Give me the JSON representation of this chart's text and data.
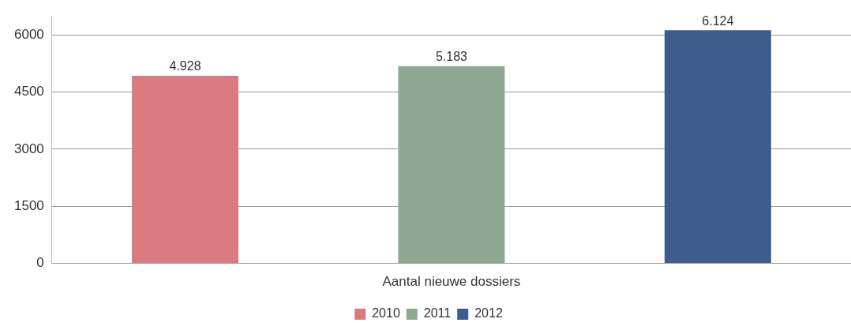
{
  "chart_data": {
    "type": "bar",
    "categories": [
      "Aantal nieuwe dossiers"
    ],
    "series": [
      {
        "name": "2010",
        "color": "#d97b80",
        "values": [
          4928
        ],
        "value_labels": [
          "4.928"
        ]
      },
      {
        "name": "2011",
        "color": "#8fa893",
        "values": [
          5183
        ],
        "value_labels": [
          "5.183"
        ]
      },
      {
        "name": "2012",
        "color": "#3f5d8c",
        "values": [
          6124
        ],
        "value_labels": [
          "6.124"
        ]
      }
    ],
    "ylim": [
      0,
      6500
    ],
    "yticks": [
      0,
      1500,
      3000,
      4500,
      6000
    ],
    "grid": "y",
    "legend": "bottom"
  }
}
